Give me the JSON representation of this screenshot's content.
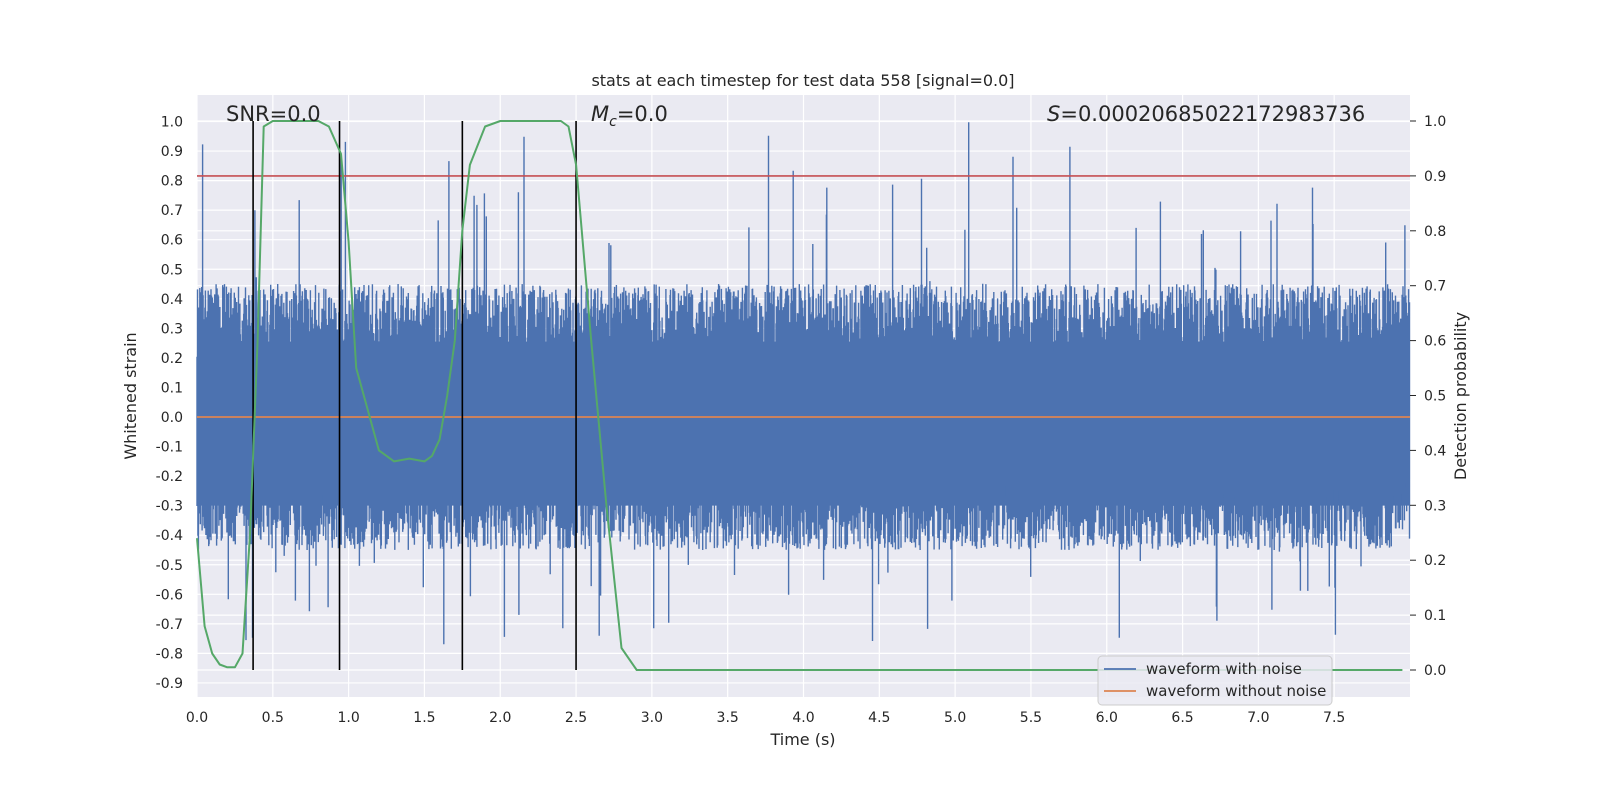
{
  "chart_data": {
    "type": "line",
    "title": "stats at each timestep for test data 558 [signal=0.0]",
    "xlabel": "Time (s)",
    "ylabel_left": "Whitened strain",
    "ylabel_right": "Detection probability",
    "xlim": [
      0.0,
      8.0
    ],
    "ylim_left": [
      -1.0,
      1.09
    ],
    "ylim_right": [
      0.0,
      1.0
    ],
    "x_ticks": [
      "0.0",
      "0.5",
      "1.0",
      "1.5",
      "2.0",
      "2.5",
      "3.0",
      "3.5",
      "4.0",
      "4.5",
      "5.0",
      "5.5",
      "6.0",
      "6.5",
      "7.0",
      "7.5"
    ],
    "y_ticks_left": [
      "1.0",
      "0.9",
      "0.8",
      "0.7",
      "0.6",
      "0.5",
      "0.4",
      "0.3",
      "0.2",
      "0.1",
      "0.0",
      "-0.1",
      "-0.2",
      "-0.3",
      "-0.4",
      "-0.5",
      "-0.6",
      "-0.7",
      "-0.8",
      "-0.9"
    ],
    "y_ticks_right": [
      "1.0",
      "0.9",
      "0.8",
      "0.7",
      "0.6",
      "0.5",
      "0.4",
      "0.3",
      "0.2",
      "0.1",
      "0.0"
    ],
    "annotations": {
      "snr": "SNR=0.0",
      "mc": "M_c=0.0",
      "mc_symbol": "M",
      "mc_subscript": "c",
      "mc_value": "=0.0",
      "s_symbol": "S",
      "s_value": "=0.00020685022172983736"
    },
    "threshold": {
      "value_right": 0.9,
      "color": "#c44e52"
    },
    "vertical_markers_x": [
      0.37,
      0.94,
      1.75,
      2.5
    ],
    "noise_envelope": {
      "typical_min": -0.45,
      "typical_max": 0.45,
      "peak_max": 1.0,
      "peak_min": -0.83
    },
    "series": [
      {
        "name": "waveform with noise",
        "color": "#4c72b0"
      },
      {
        "name": "waveform without noise",
        "color": "#dd8452",
        "value": 0.0
      },
      {
        "color": "#55a868",
        "axis": "right",
        "x": [
          0.0,
          0.05,
          0.1,
          0.15,
          0.2,
          0.25,
          0.3,
          0.35,
          0.4,
          0.44,
          0.5,
          0.6,
          0.7,
          0.8,
          0.87,
          0.95,
          1.0,
          1.05,
          1.1,
          1.2,
          1.3,
          1.4,
          1.5,
          1.55,
          1.6,
          1.65,
          1.7,
          1.75,
          1.8,
          1.9,
          2.0,
          2.2,
          2.4,
          2.45,
          2.5,
          2.6,
          2.7,
          2.8,
          2.9,
          3.0,
          4.0,
          5.0,
          6.0,
          7.0,
          7.95
        ],
        "y": [
          0.24,
          0.08,
          0.03,
          0.01,
          0.005,
          0.005,
          0.03,
          0.25,
          0.6,
          0.99,
          1.0,
          1.0,
          1.0,
          1.0,
          0.99,
          0.94,
          0.78,
          0.55,
          0.5,
          0.4,
          0.38,
          0.385,
          0.38,
          0.39,
          0.42,
          0.5,
          0.6,
          0.8,
          0.92,
          0.99,
          1.0,
          1.0,
          1.0,
          0.99,
          0.92,
          0.6,
          0.3,
          0.04,
          0.0,
          0.0,
          0.0,
          0.0,
          0.0,
          0.0,
          0.0
        ]
      }
    ]
  }
}
